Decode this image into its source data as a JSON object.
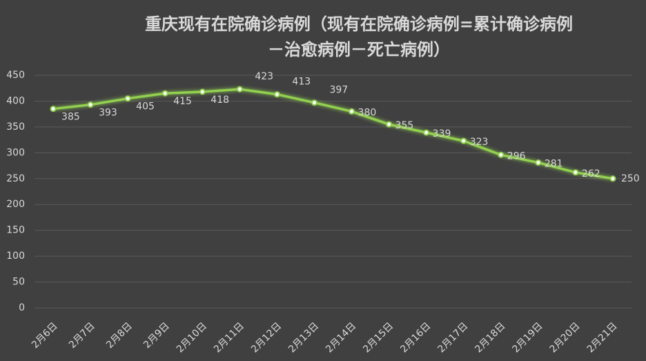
{
  "chart_data": {
    "type": "line",
    "title_lines": [
      "重庆现有在院确诊病例（现有在院确诊病例=累计确诊病例",
      "－治愈病例－死亡病例）"
    ],
    "categories": [
      "2月6日",
      "2月7日",
      "2月8日",
      "2月9日",
      "2月10日",
      "2月11日",
      "2月12日",
      "2月13日",
      "2月14日",
      "2月15日",
      "2月16日",
      "2月17日",
      "2月18日",
      "2月19日",
      "2月20日",
      "2月21日"
    ],
    "values": [
      385,
      393,
      405,
      415,
      418,
      423,
      413,
      397,
      380,
      355,
      339,
      323,
      296,
      281,
      262,
      250
    ],
    "color": "#92d050",
    "ylim": [
      0,
      450
    ],
    "yticks": [
      0,
      50,
      100,
      150,
      200,
      250,
      300,
      350,
      400,
      450
    ],
    "grid": true
  }
}
